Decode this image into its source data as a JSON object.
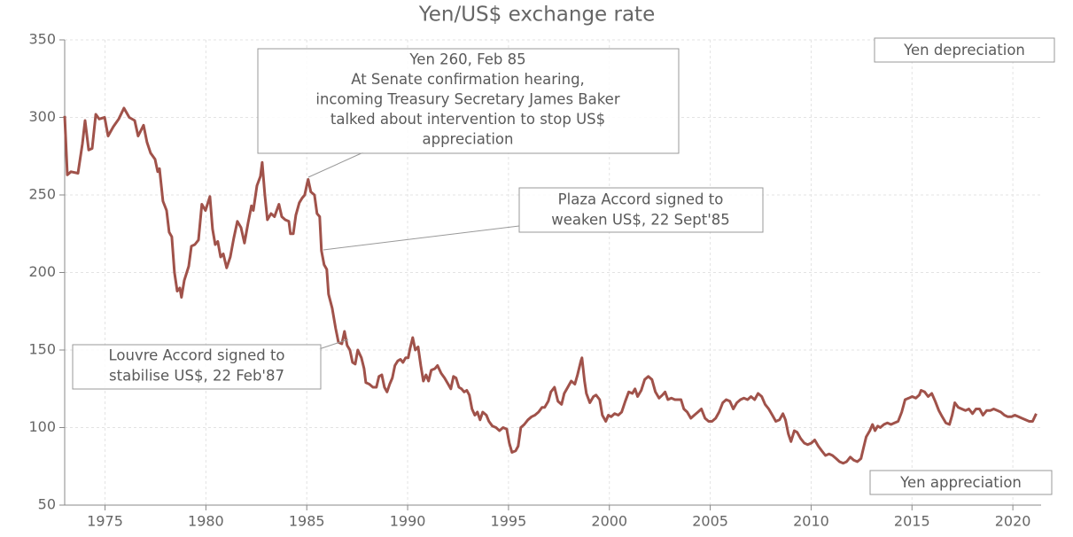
{
  "chart_data": {
    "type": "line",
    "title": "Yen/US$ exchange rate",
    "x": [
      1973.0,
      1973.13,
      1973.31,
      1973.66,
      1973.88,
      1974.01,
      1974.19,
      1974.36,
      1974.54,
      1974.71,
      1974.98,
      1975.15,
      1975.41,
      1975.68,
      1975.94,
      1976.2,
      1976.47,
      1976.64,
      1976.91,
      1977.08,
      1977.26,
      1977.48,
      1977.61,
      1977.7,
      1977.87,
      1978.05,
      1978.18,
      1978.31,
      1978.44,
      1978.58,
      1978.71,
      1978.79,
      1978.93,
      1979.15,
      1979.28,
      1979.45,
      1979.63,
      1979.8,
      1979.98,
      1980.2,
      1980.33,
      1980.46,
      1980.59,
      1980.73,
      1980.86,
      1981.03,
      1981.21,
      1981.38,
      1981.56,
      1981.74,
      1981.91,
      1982.09,
      1982.26,
      1982.35,
      1982.53,
      1982.7,
      1982.79,
      1982.92,
      1983.05,
      1983.23,
      1983.4,
      1983.62,
      1983.76,
      1983.93,
      1984.11,
      1984.19,
      1984.33,
      1984.46,
      1984.63,
      1984.77,
      1984.9,
      1985.03,
      1985.07,
      1985.2,
      1985.38,
      1985.51,
      1985.64,
      1985.73,
      1985.86,
      1985.99,
      1986.08,
      1986.26,
      1986.43,
      1986.57,
      1986.74,
      1986.87,
      1987.0,
      1987.14,
      1987.27,
      1987.4,
      1987.53,
      1987.71,
      1987.84,
      1987.93,
      1988.1,
      1988.28,
      1988.45,
      1988.58,
      1988.72,
      1988.85,
      1988.98,
      1989.11,
      1989.24,
      1989.37,
      1989.51,
      1989.64,
      1989.77,
      1989.9,
      1990.03,
      1990.12,
      1990.25,
      1990.38,
      1990.52,
      1990.65,
      1990.78,
      1990.91,
      1991.04,
      1991.17,
      1991.35,
      1991.48,
      1991.66,
      1991.83,
      1992.01,
      1992.14,
      1992.27,
      1992.4,
      1992.54,
      1992.67,
      1992.8,
      1992.93,
      1993.06,
      1993.19,
      1993.33,
      1993.46,
      1993.59,
      1993.72,
      1993.9,
      1994.03,
      1994.2,
      1994.38,
      1994.55,
      1994.73,
      1994.91,
      1995.04,
      1995.17,
      1995.35,
      1995.48,
      1995.61,
      1995.78,
      1995.96,
      1996.14,
      1996.31,
      1996.49,
      1996.66,
      1996.79,
      1996.97,
      1997.1,
      1997.28,
      1997.45,
      1997.63,
      1997.76,
      1997.94,
      1998.11,
      1998.29,
      1998.42,
      1998.59,
      1998.64,
      1998.77,
      1998.86,
      1999.03,
      1999.21,
      1999.34,
      1999.52,
      1999.65,
      1999.82,
      1999.95,
      2000.09,
      2000.26,
      2000.44,
      2000.61,
      2000.79,
      2000.96,
      2001.14,
      2001.27,
      2001.4,
      2001.58,
      2001.75,
      2001.93,
      2002.11,
      2002.28,
      2002.46,
      2002.63,
      2002.76,
      2002.9,
      2003.07,
      2003.25,
      2003.42,
      2003.55,
      2003.69,
      2003.86,
      2004.04,
      2004.21,
      2004.39,
      2004.56,
      2004.74,
      2004.92,
      2005.09,
      2005.27,
      2005.44,
      2005.62,
      2005.79,
      2005.97,
      2006.14,
      2006.32,
      2006.5,
      2006.67,
      2006.85,
      2007.02,
      2007.2,
      2007.37,
      2007.55,
      2007.72,
      2007.9,
      2008.08,
      2008.25,
      2008.43,
      2008.6,
      2008.73,
      2008.87,
      2009.0,
      2009.17,
      2009.31,
      2009.48,
      2009.66,
      2009.83,
      2010.01,
      2010.18,
      2010.36,
      2010.53,
      2010.71,
      2010.89,
      2011.06,
      2011.24,
      2011.41,
      2011.59,
      2011.76,
      2011.94,
      2012.11,
      2012.29,
      2012.47,
      2012.6,
      2012.73,
      2012.91,
      2013.04,
      2013.17,
      2013.3,
      2013.43,
      2013.61,
      2013.78,
      2013.96,
      2014.13,
      2014.31,
      2014.49,
      2014.66,
      2014.84,
      2015.01,
      2015.19,
      2015.36,
      2015.45,
      2015.63,
      2015.8,
      2015.98,
      2016.15,
      2016.33,
      2016.5,
      2016.68,
      2016.86,
      2016.99,
      2017.12,
      2017.3,
      2017.47,
      2017.65,
      2017.82,
      2018.0,
      2018.17,
      2018.35,
      2018.52,
      2018.7,
      2018.88,
      2019.05,
      2019.23,
      2019.4,
      2019.58,
      2019.75,
      2019.93,
      2020.1,
      2020.28,
      2020.45,
      2020.63,
      2020.81,
      2020.98,
      2021.16
    ],
    "values": [
      301,
      263,
      265,
      264,
      283,
      298,
      279,
      280,
      302,
      299,
      300,
      288,
      294,
      299,
      306,
      300,
      298,
      288,
      295,
      284,
      277,
      273,
      265,
      267,
      246,
      240,
      226,
      223,
      200,
      188,
      190,
      184,
      195,
      204,
      217,
      218,
      221,
      244,
      240,
      249,
      228,
      218,
      220,
      210,
      212,
      203,
      210,
      222,
      233,
      229,
      219,
      232,
      243,
      240,
      256,
      262,
      271,
      250,
      234,
      238,
      236,
      244,
      236,
      234,
      233,
      225,
      225,
      237,
      245,
      248,
      250,
      258,
      260,
      252,
      250,
      238,
      236,
      214,
      205,
      202,
      186,
      177,
      164,
      155,
      154,
      162,
      153,
      150,
      142,
      141,
      150,
      145,
      138,
      129,
      128,
      126,
      126,
      133,
      134,
      126,
      123,
      128,
      132,
      140,
      143,
      144,
      142,
      145,
      145,
      151,
      158,
      150,
      152,
      140,
      130,
      134,
      130,
      137,
      138,
      140,
      135,
      132,
      128,
      125,
      133,
      132,
      126,
      125,
      123,
      124,
      121,
      112,
      108,
      110,
      105,
      110,
      108,
      104,
      101,
      100,
      98,
      100,
      99,
      90,
      84,
      85,
      88,
      100,
      102,
      105,
      107,
      108,
      110,
      113,
      113,
      117,
      123,
      126,
      117,
      115,
      122,
      126,
      130,
      128,
      134,
      143,
      145,
      130,
      122,
      116,
      120,
      121,
      118,
      108,
      104,
      108,
      107,
      109,
      108,
      110,
      117,
      123,
      122,
      125,
      120,
      124,
      131,
      133,
      131,
      123,
      119,
      121,
      123,
      118,
      119,
      118,
      118,
      118,
      112,
      110,
      106,
      108,
      110,
      112,
      106,
      104,
      104,
      106,
      110,
      116,
      118,
      117,
      112,
      116,
      118,
      119,
      118,
      120,
      118,
      122,
      120,
      115,
      112,
      108,
      104,
      105,
      109,
      105,
      96,
      91,
      98,
      97,
      93,
      90,
      89,
      90,
      92,
      88,
      85,
      82,
      83,
      82,
      80,
      78,
      77,
      78,
      81,
      79,
      78,
      80,
      87,
      94,
      98,
      102,
      98,
      101,
      100,
      102,
      103,
      102,
      103,
      104,
      110,
      118,
      119,
      120,
      119,
      121,
      124,
      123,
      120,
      122,
      117,
      111,
      107,
      103,
      102,
      108,
      116,
      113,
      112,
      111,
      112,
      109,
      112,
      112,
      108,
      111,
      111,
      112,
      111,
      110,
      108,
      107,
      107,
      108,
      107,
      106,
      105,
      104,
      104,
      109
    ],
    "color": "#a0524a",
    "xlim": [
      1973,
      2021.4
    ],
    "xticks": [
      1975,
      1980,
      1985,
      1990,
      1995,
      2000,
      2005,
      2010,
      2015,
      2020
    ],
    "ylim": [
      50,
      350
    ],
    "yticks": [
      50,
      100,
      150,
      200,
      250,
      300,
      350
    ],
    "grid": true,
    "annotations": [
      [
        "Yen 260, Feb 85",
        "At Senate confirmation hearing,",
        "incoming Treasury Secretary James Baker",
        "talked about intervention to stop US$",
        "appreciation"
      ],
      [
        "Plaza Accord signed to",
        "weaken US$, 22 Sept'85"
      ],
      [
        "Louvre Accord signed to",
        "stabilise US$, 22 Feb'87"
      ]
    ],
    "corner_labels": [
      "Yen depreciation",
      "Yen appreciation"
    ]
  }
}
